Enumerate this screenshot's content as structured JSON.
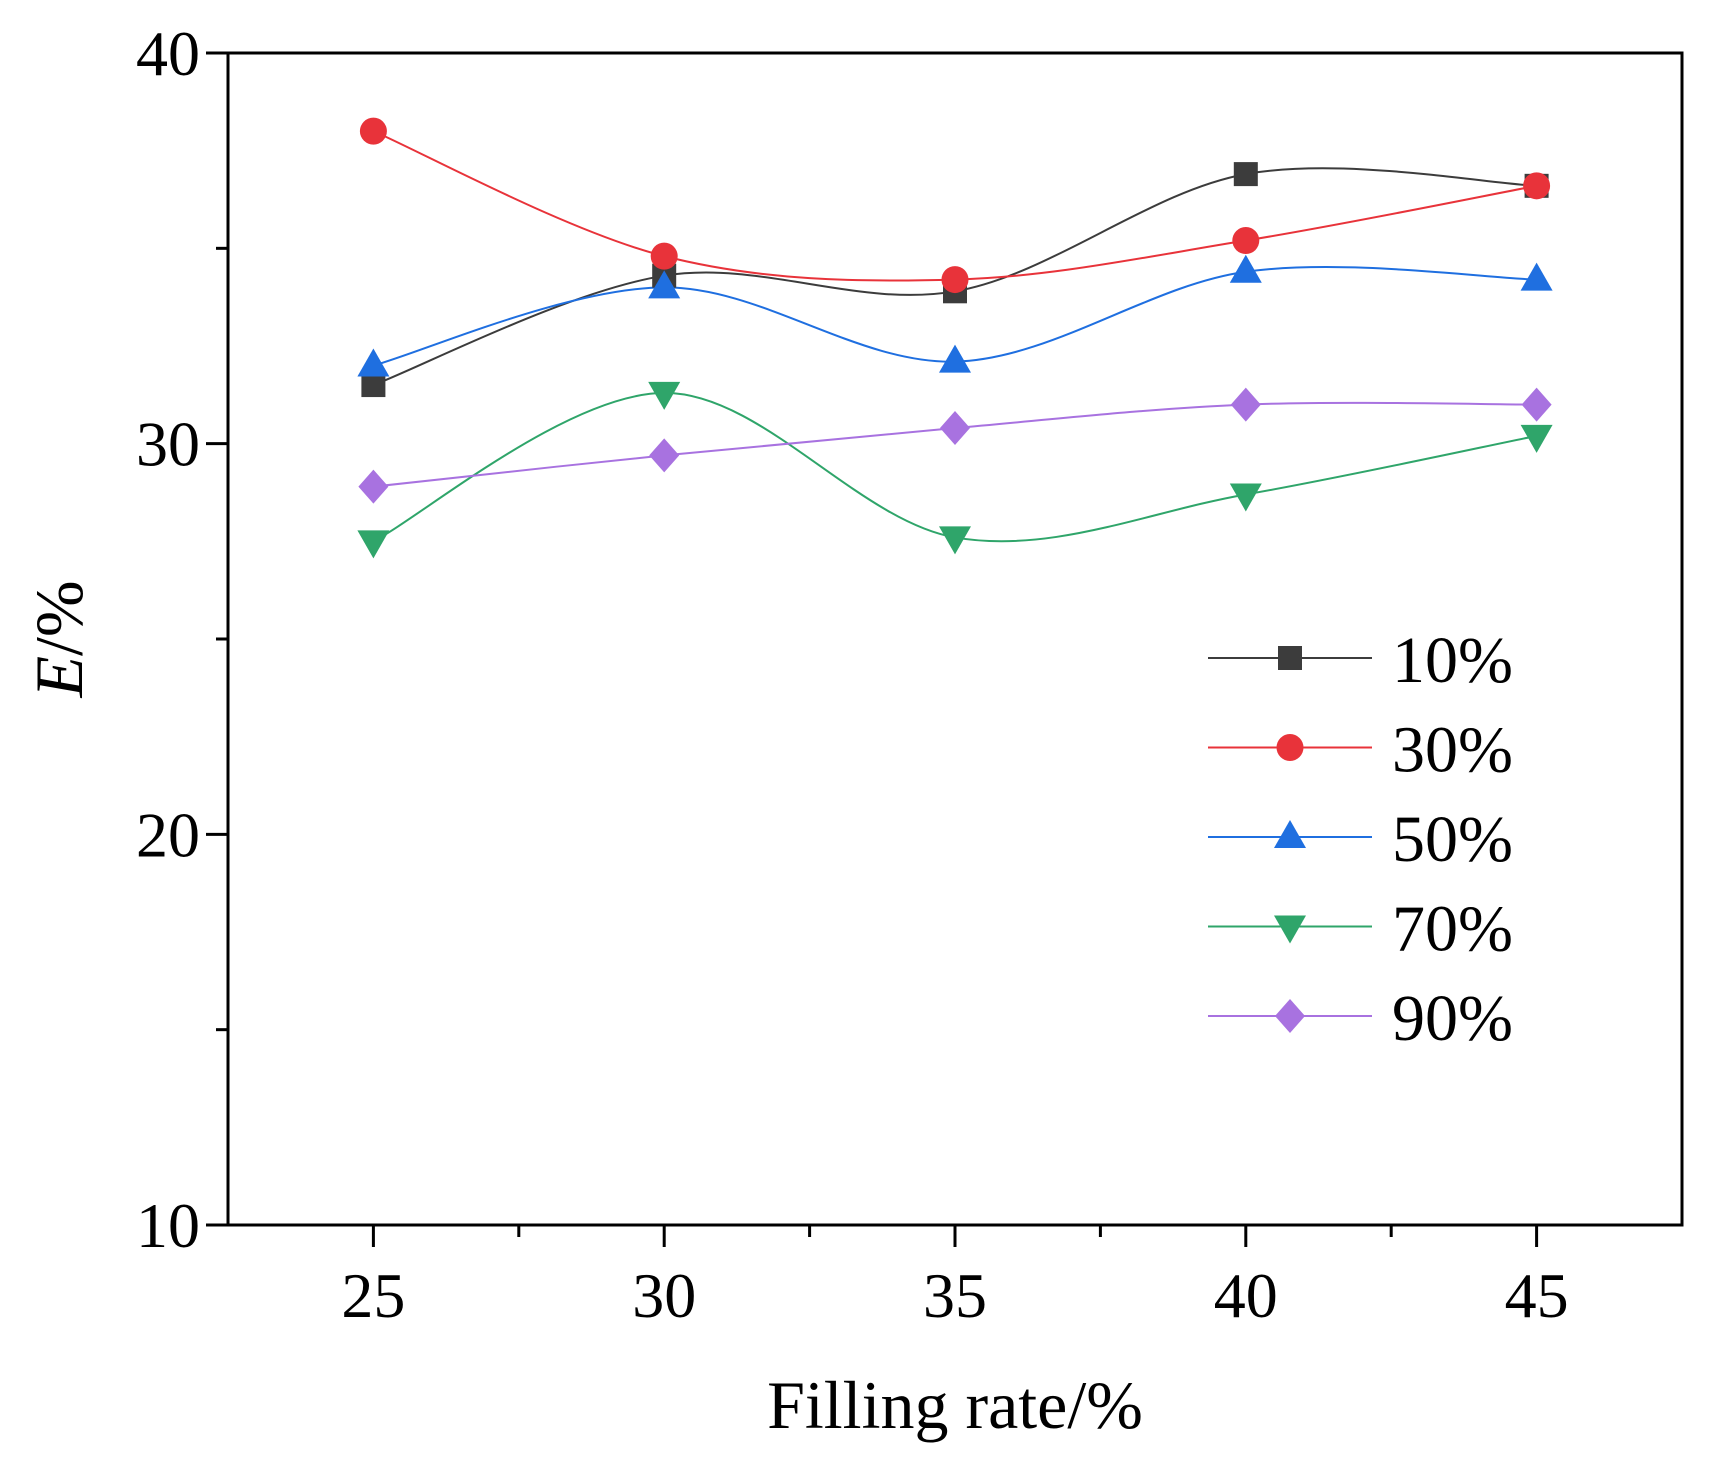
{
  "chart_data": {
    "type": "line",
    "title": "",
    "xlabel": "Filling rate/%",
    "ylabel_italic": "E",
    "ylabel_rest": "/%",
    "xlim": [
      22.5,
      47.5
    ],
    "ylim": [
      10,
      40
    ],
    "x": [
      25,
      30,
      35,
      40,
      45
    ],
    "x_ticks": [
      25,
      30,
      35,
      40,
      45
    ],
    "x_tick_labels": [
      "25",
      "30",
      "35",
      "40",
      "45"
    ],
    "x_minor_ticks": [
      27.5,
      32.5,
      37.5,
      42.5
    ],
    "y_ticks": [
      10,
      20,
      30,
      40
    ],
    "y_tick_labels": [
      "10",
      "20",
      "30",
      "40"
    ],
    "y_minor_ticks": [
      15,
      25,
      35
    ],
    "grid": false,
    "legend_position": "right-middle",
    "smoothed": true,
    "series": [
      {
        "name": "10%",
        "color": "#3c3c3c",
        "marker": "square",
        "values": [
          31.5,
          34.3,
          33.9,
          36.9,
          36.6
        ]
      },
      {
        "name": "30%",
        "color": "#e8333a",
        "marker": "circle",
        "values": [
          38.0,
          34.8,
          34.2,
          35.2,
          36.6
        ]
      },
      {
        "name": "50%",
        "color": "#1f6fe0",
        "marker": "triangle-up",
        "values": [
          32.0,
          34.0,
          32.1,
          34.4,
          34.2
        ]
      },
      {
        "name": "70%",
        "color": "#2fa56a",
        "marker": "triangle-down",
        "values": [
          27.5,
          31.3,
          27.6,
          28.7,
          30.2
        ]
      },
      {
        "name": "90%",
        "color": "#a872e0",
        "marker": "diamond",
        "values": [
          28.9,
          29.7,
          30.4,
          31.0,
          31.0
        ]
      }
    ]
  }
}
